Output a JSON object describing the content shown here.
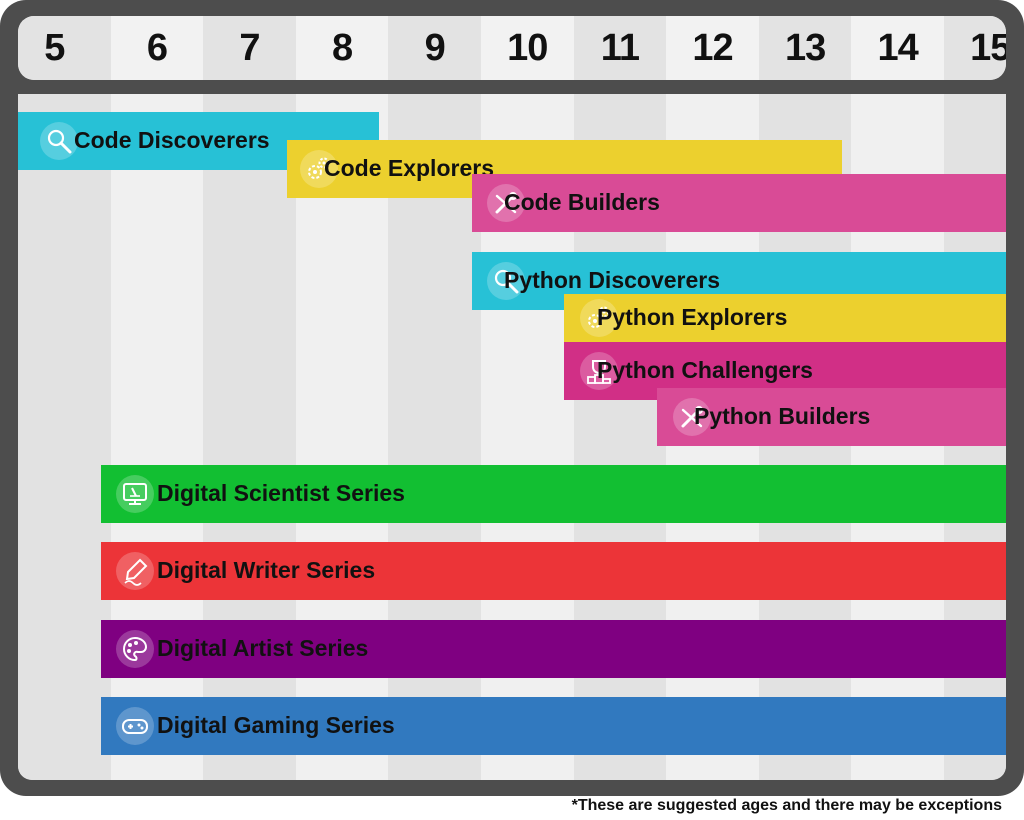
{
  "chart_data": {
    "type": "gantt",
    "x_axis": {
      "label": "",
      "ticks": [
        "5",
        "6",
        "7",
        "8",
        "9",
        "10",
        "11",
        "12",
        "13",
        "14",
        "15"
      ],
      "range": [
        5,
        15
      ]
    },
    "bars": [
      {
        "name": "Code Discoverers",
        "start": 5,
        "end": 8.9,
        "color": "#27c1d6",
        "icon": "magnifier-icon"
      },
      {
        "name": "Code Explorers",
        "start": 7.9,
        "end": 13.9,
        "color": "#ecd02e",
        "icon": "gears-icon"
      },
      {
        "name": "Code Builders",
        "start": 9.9,
        "end": 15,
        "color": "#d94b96",
        "icon": "tools-icon"
      },
      {
        "name": "Python Discoverers",
        "start": 9.9,
        "end": 15,
        "color": "#27c1d6",
        "icon": "magnifier-icon"
      },
      {
        "name": "Python Explorers",
        "start": 10.9,
        "end": 15,
        "color": "#ecd02e",
        "icon": "gears-icon"
      },
      {
        "name": "Python Challengers",
        "start": 10.9,
        "end": 15,
        "color": "#d12f86",
        "icon": "trophy-icon"
      },
      {
        "name": "Python Builders",
        "start": 11.9,
        "end": 15,
        "color": "#d94b96",
        "icon": "tools-icon"
      },
      {
        "name": "Digital Scientist Series",
        "start": 5.9,
        "end": 15,
        "color": "#12bf32",
        "icon": "microscope-monitor-icon"
      },
      {
        "name": "Digital Writer Series",
        "start": 5.9,
        "end": 15,
        "color": "#ec3438",
        "icon": "pen-icon"
      },
      {
        "name": "Digital Artist Series",
        "start": 5.9,
        "end": 15,
        "color": "#7f0081",
        "icon": "palette-icon"
      },
      {
        "name": "Digital Gaming Series",
        "start": 5.9,
        "end": 15,
        "color": "#3179bf",
        "icon": "gamepad-icon"
      }
    ],
    "footnote": "*These are suggested ages and there may be exceptions"
  },
  "colors": {
    "frame": "#4d4d4d",
    "stripe_light": "#f0f0f0",
    "stripe_dark": "#e2e2e2",
    "header_light": "#f2f2f2",
    "header_dark": "#e3e3e3"
  }
}
